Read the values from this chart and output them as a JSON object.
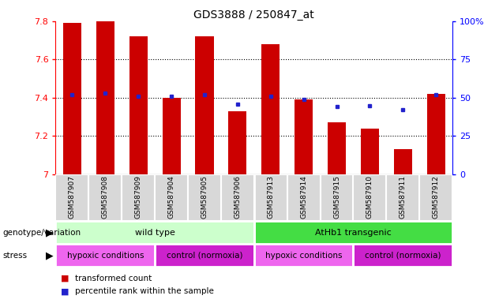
{
  "title": "GDS3888 / 250847_at",
  "samples": [
    "GSM587907",
    "GSM587908",
    "GSM587909",
    "GSM587904",
    "GSM587905",
    "GSM587906",
    "GSM587913",
    "GSM587914",
    "GSM587915",
    "GSM587910",
    "GSM587911",
    "GSM587912"
  ],
  "bar_values": [
    7.79,
    7.8,
    7.72,
    7.4,
    7.72,
    7.33,
    7.68,
    7.39,
    7.27,
    7.24,
    7.13,
    7.42
  ],
  "percentile_values": [
    52,
    53,
    51,
    51,
    52,
    46,
    51,
    49,
    44,
    45,
    42,
    52
  ],
  "ymin": 7.0,
  "ymax": 7.8,
  "left_yticks": [
    7.0,
    7.2,
    7.4,
    7.6,
    7.8
  ],
  "left_yticklabels": [
    "7",
    "7.2",
    "7.4",
    "7.6",
    "7.8"
  ],
  "right_yticks": [
    0,
    25,
    50,
    75,
    100
  ],
  "right_yticklabels": [
    "0",
    "25",
    "50",
    "75",
    "100%"
  ],
  "grid_yticks": [
    7.2,
    7.4,
    7.6
  ],
  "bar_color": "#cc0000",
  "dot_color": "#2222cc",
  "genotype_groups": [
    {
      "label": "wild type",
      "start": 0,
      "end": 6,
      "color": "#ccffcc"
    },
    {
      "label": "AtHb1 transgenic",
      "start": 6,
      "end": 12,
      "color": "#44dd44"
    }
  ],
  "stress_groups": [
    {
      "label": "hypoxic conditions",
      "start": 0,
      "end": 3,
      "color": "#ee66ee"
    },
    {
      "label": "control (normoxia)",
      "start": 3,
      "end": 6,
      "color": "#cc22cc"
    },
    {
      "label": "hypoxic conditions",
      "start": 6,
      "end": 9,
      "color": "#ee66ee"
    },
    {
      "label": "control (normoxia)",
      "start": 9,
      "end": 12,
      "color": "#cc22cc"
    }
  ],
  "legend": [
    {
      "label": "transformed count",
      "color": "#cc0000"
    },
    {
      "label": "percentile rank within the sample",
      "color": "#2222cc"
    }
  ],
  "genotype_label": "genotype/variation",
  "stress_label": "stress"
}
